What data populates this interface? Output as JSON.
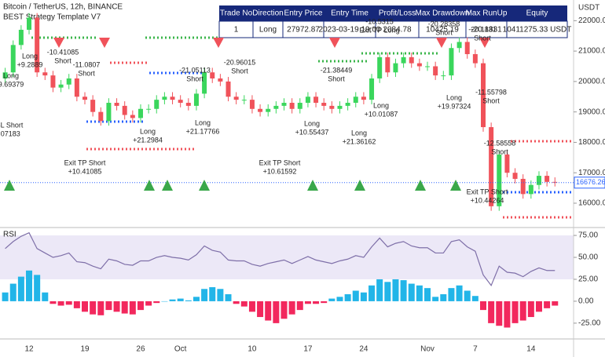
{
  "chart_data": [
    {
      "type": "candlestick",
      "title": "Bitcoin / TetherUS, 12h, BINANCE",
      "subtitle": "BEST Strategy Template V7",
      "axis_unit": "USDT",
      "categories": [
        null,
        null,
        null,
        "12",
        null,
        null,
        null,
        null,
        null,
        null,
        "19",
        null,
        null,
        null,
        null,
        null,
        null,
        "26",
        null,
        null,
        null,
        null,
        "Oct",
        null,
        null,
        null,
        null,
        null,
        null,
        null,
        null,
        "10",
        null,
        null,
        null,
        null,
        null,
        null,
        "17",
        null,
        null,
        null,
        null,
        null,
        null,
        "24",
        null,
        null,
        null,
        null,
        null,
        null,
        null,
        "Nov",
        null,
        null,
        null,
        null,
        null,
        "7",
        null,
        null,
        null,
        null,
        null,
        null,
        "14",
        null,
        null,
        null
      ],
      "open": [
        20100,
        20300,
        21200,
        21700,
        22100,
        20300,
        20200,
        19800,
        19900,
        20100,
        19500,
        19400,
        19000,
        18700,
        19300,
        19200,
        18900,
        18800,
        19100,
        19100,
        19400,
        19500,
        19400,
        19300,
        19200,
        19600,
        20300,
        20100,
        20000,
        19500,
        19400,
        19400,
        19100,
        19000,
        19100,
        19200,
        19300,
        19100,
        19300,
        19500,
        19300,
        19200,
        19100,
        19200,
        19300,
        19500,
        19400,
        20100,
        20800,
        20300,
        20600,
        20800,
        20600,
        20500,
        20500,
        20200,
        20200,
        21100,
        21300,
        20900,
        20600,
        18500,
        15900,
        17600,
        17000,
        16800,
        16300,
        16600,
        16900,
        16700
      ],
      "high": [
        20450,
        21350,
        21850,
        22250,
        22250,
        20450,
        20350,
        20050,
        20250,
        20250,
        19650,
        19550,
        19150,
        19450,
        19450,
        19350,
        19050,
        19250,
        19250,
        19550,
        19650,
        19650,
        19550,
        19450,
        19750,
        20450,
        20450,
        20250,
        20150,
        19650,
        19550,
        19550,
        19250,
        19250,
        19350,
        19450,
        19450,
        19450,
        19650,
        19650,
        19450,
        19350,
        19350,
        19450,
        19650,
        19650,
        20250,
        20950,
        20950,
        20750,
        20950,
        20950,
        20750,
        20650,
        20650,
        20350,
        21250,
        21450,
        21450,
        21050,
        20750,
        18650,
        17750,
        17750,
        17150,
        16950,
        16750,
        17050,
        17050,
        16850
      ],
      "low": [
        19950,
        20150,
        21050,
        21550,
        20150,
        20050,
        19650,
        19650,
        19750,
        19350,
        19250,
        18850,
        18550,
        18550,
        19050,
        18750,
        18650,
        18650,
        18950,
        18950,
        19250,
        19250,
        19150,
        19050,
        19050,
        19450,
        19950,
        19850,
        19350,
        19250,
        19250,
        18950,
        18850,
        18850,
        18950,
        19050,
        18950,
        18950,
        19150,
        19150,
        19050,
        18950,
        18950,
        19050,
        19150,
        19250,
        19250,
        19950,
        20150,
        20150,
        20450,
        20450,
        20350,
        20350,
        20050,
        20050,
        20050,
        20950,
        20750,
        20450,
        18350,
        15750,
        15750,
        16850,
        16650,
        16150,
        16150,
        16450,
        16550,
        16550
      ],
      "close": [
        20300,
        21200,
        21700,
        22100,
        20300,
        20200,
        19800,
        19900,
        20100,
        19500,
        19400,
        19000,
        18700,
        19300,
        19200,
        18900,
        18800,
        19100,
        19100,
        19400,
        19500,
        19400,
        19300,
        19200,
        19600,
        20300,
        20100,
        20000,
        19500,
        19400,
        19400,
        19100,
        19000,
        19100,
        19200,
        19300,
        19100,
        19300,
        19500,
        19300,
        19200,
        19100,
        19200,
        19300,
        19500,
        19400,
        20100,
        20800,
        20300,
        20600,
        20800,
        20600,
        20500,
        20500,
        20200,
        20200,
        21100,
        21300,
        20900,
        20600,
        18500,
        15900,
        17600,
        17000,
        16800,
        16300,
        16600,
        16900,
        16700,
        16680
      ],
      "up_color": "#3ad65c",
      "down_color": "#f0525a",
      "ylim": [
        15200,
        22550
      ],
      "yticks": [
        {
          "value": 16000,
          "label": "16000.00"
        },
        {
          "value": 17000,
          "label": "17000.00"
        },
        {
          "value": 18000,
          "label": "18000.00"
        },
        {
          "value": 19000,
          "label": "19000.00"
        },
        {
          "value": 20000,
          "label": "20000.00"
        },
        {
          "value": 21000,
          "label": "21000.00"
        },
        {
          "value": 22000,
          "label": "22000.00"
        }
      ],
      "last_price": 16676.26,
      "last_price_color": "#2962ff"
    },
    {
      "type": "rsi",
      "title": "RSI",
      "line": {
        "color": "#7e6fa8",
        "values": [
          60,
          68,
          74,
          78,
          60,
          55,
          50,
          52,
          55,
          45,
          44,
          40,
          37,
          48,
          46,
          42,
          41,
          46,
          46,
          50,
          52,
          50,
          49,
          47,
          53,
          63,
          58,
          56,
          47,
          46,
          46,
          42,
          40,
          43,
          45,
          47,
          43,
          47,
          51,
          47,
          45,
          43,
          46,
          48,
          52,
          50,
          62,
          72,
          62,
          66,
          68,
          63,
          61,
          61,
          55,
          55,
          68,
          70,
          62,
          57,
          30,
          18,
          40,
          33,
          32,
          28,
          34,
          38,
          35,
          35
        ]
      },
      "histogram": {
        "pos_color": "#22b5e8",
        "neg_color": "#f2285d",
        "values": [
          10,
          20,
          28,
          35,
          30,
          10,
          -3,
          -5,
          -4,
          -8,
          -12,
          -15,
          -16,
          -10,
          -12,
          -14,
          -15,
          -10,
          -5,
          -2,
          0,
          2,
          3,
          1,
          5,
          14,
          16,
          14,
          8,
          -3,
          -6,
          -12,
          -18,
          -22,
          -25,
          -20,
          -15,
          -10,
          -3,
          -3,
          -2,
          3,
          5,
          8,
          12,
          10,
          18,
          25,
          22,
          25,
          24,
          20,
          18,
          15,
          5,
          8,
          15,
          18,
          12,
          6,
          -10,
          -25,
          -28,
          -30,
          -25,
          -22,
          -18,
          -12,
          -8,
          -5
        ]
      },
      "ylim": [
        -43,
        84
      ],
      "yticks": [
        {
          "value": 75,
          "label": "75.00"
        },
        {
          "value": 50,
          "label": "50.00"
        },
        {
          "value": 25,
          "label": "25.00"
        },
        {
          "value": 0,
          "label": "0.00"
        },
        {
          "value": -25,
          "label": "-25.00"
        }
      ]
    }
  ],
  "table": {
    "columns": [
      "Trade No",
      "Direction",
      "Entry Price",
      "Entry Time",
      "Profit/Loss",
      "Max Drawdown",
      "Max RunUp",
      "Equity"
    ],
    "rows": [
      [
        "1",
        "Long",
        "27972.87",
        "2023-03-19 19:00",
        "2084.78",
        "10425.19",
        "-20.1831",
        "10411275.33 USDT"
      ]
    ]
  },
  "annotations": [
    [
      "-10.41085",
      "Short"
    ],
    [
      "Long",
      "+9.2889"
    ],
    [
      "Long",
      "9.69379"
    ],
    [
      "SL Short",
      ".07183"
    ],
    [
      "-11.0807",
      "Short"
    ],
    [
      "-21.05113",
      "Short"
    ],
    [
      "-20.96015",
      "Short"
    ],
    [
      "-21.38449",
      "Short"
    ],
    [
      "-10.5315",
      "Exit TP Long"
    ],
    [
      "-20.28358",
      "Short"
    ],
    [
      "-20.1831",
      "Short"
    ],
    [
      "-11.55798",
      "Short"
    ],
    [
      "-12.58558",
      "Short"
    ],
    [
      "Long",
      "+19.97324"
    ],
    [
      "Long",
      "+10.01087"
    ],
    [
      "Long",
      "+10.55437"
    ],
    [
      "Long",
      "+21.36162"
    ],
    [
      "Long",
      "+21.17766"
    ],
    [
      "Long",
      "+21.2984"
    ],
    [
      "Exit TP Short",
      "+10.41085"
    ],
    [
      "Exit TP Short",
      "+10.61592"
    ],
    [
      "Exit TP Short",
      "+10.44264"
    ]
  ]
}
